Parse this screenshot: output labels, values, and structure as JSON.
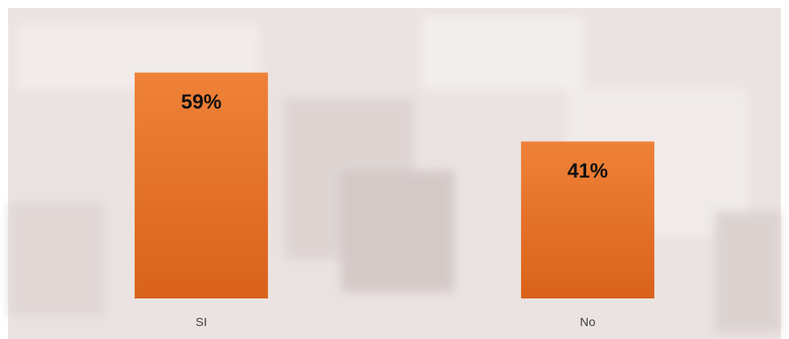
{
  "chart_data": {
    "type": "bar",
    "categories": [
      "SI",
      "No"
    ],
    "values": [
      59,
      41
    ],
    "value_labels": [
      "59%",
      "41%"
    ],
    "color": "#e8722a"
  }
}
